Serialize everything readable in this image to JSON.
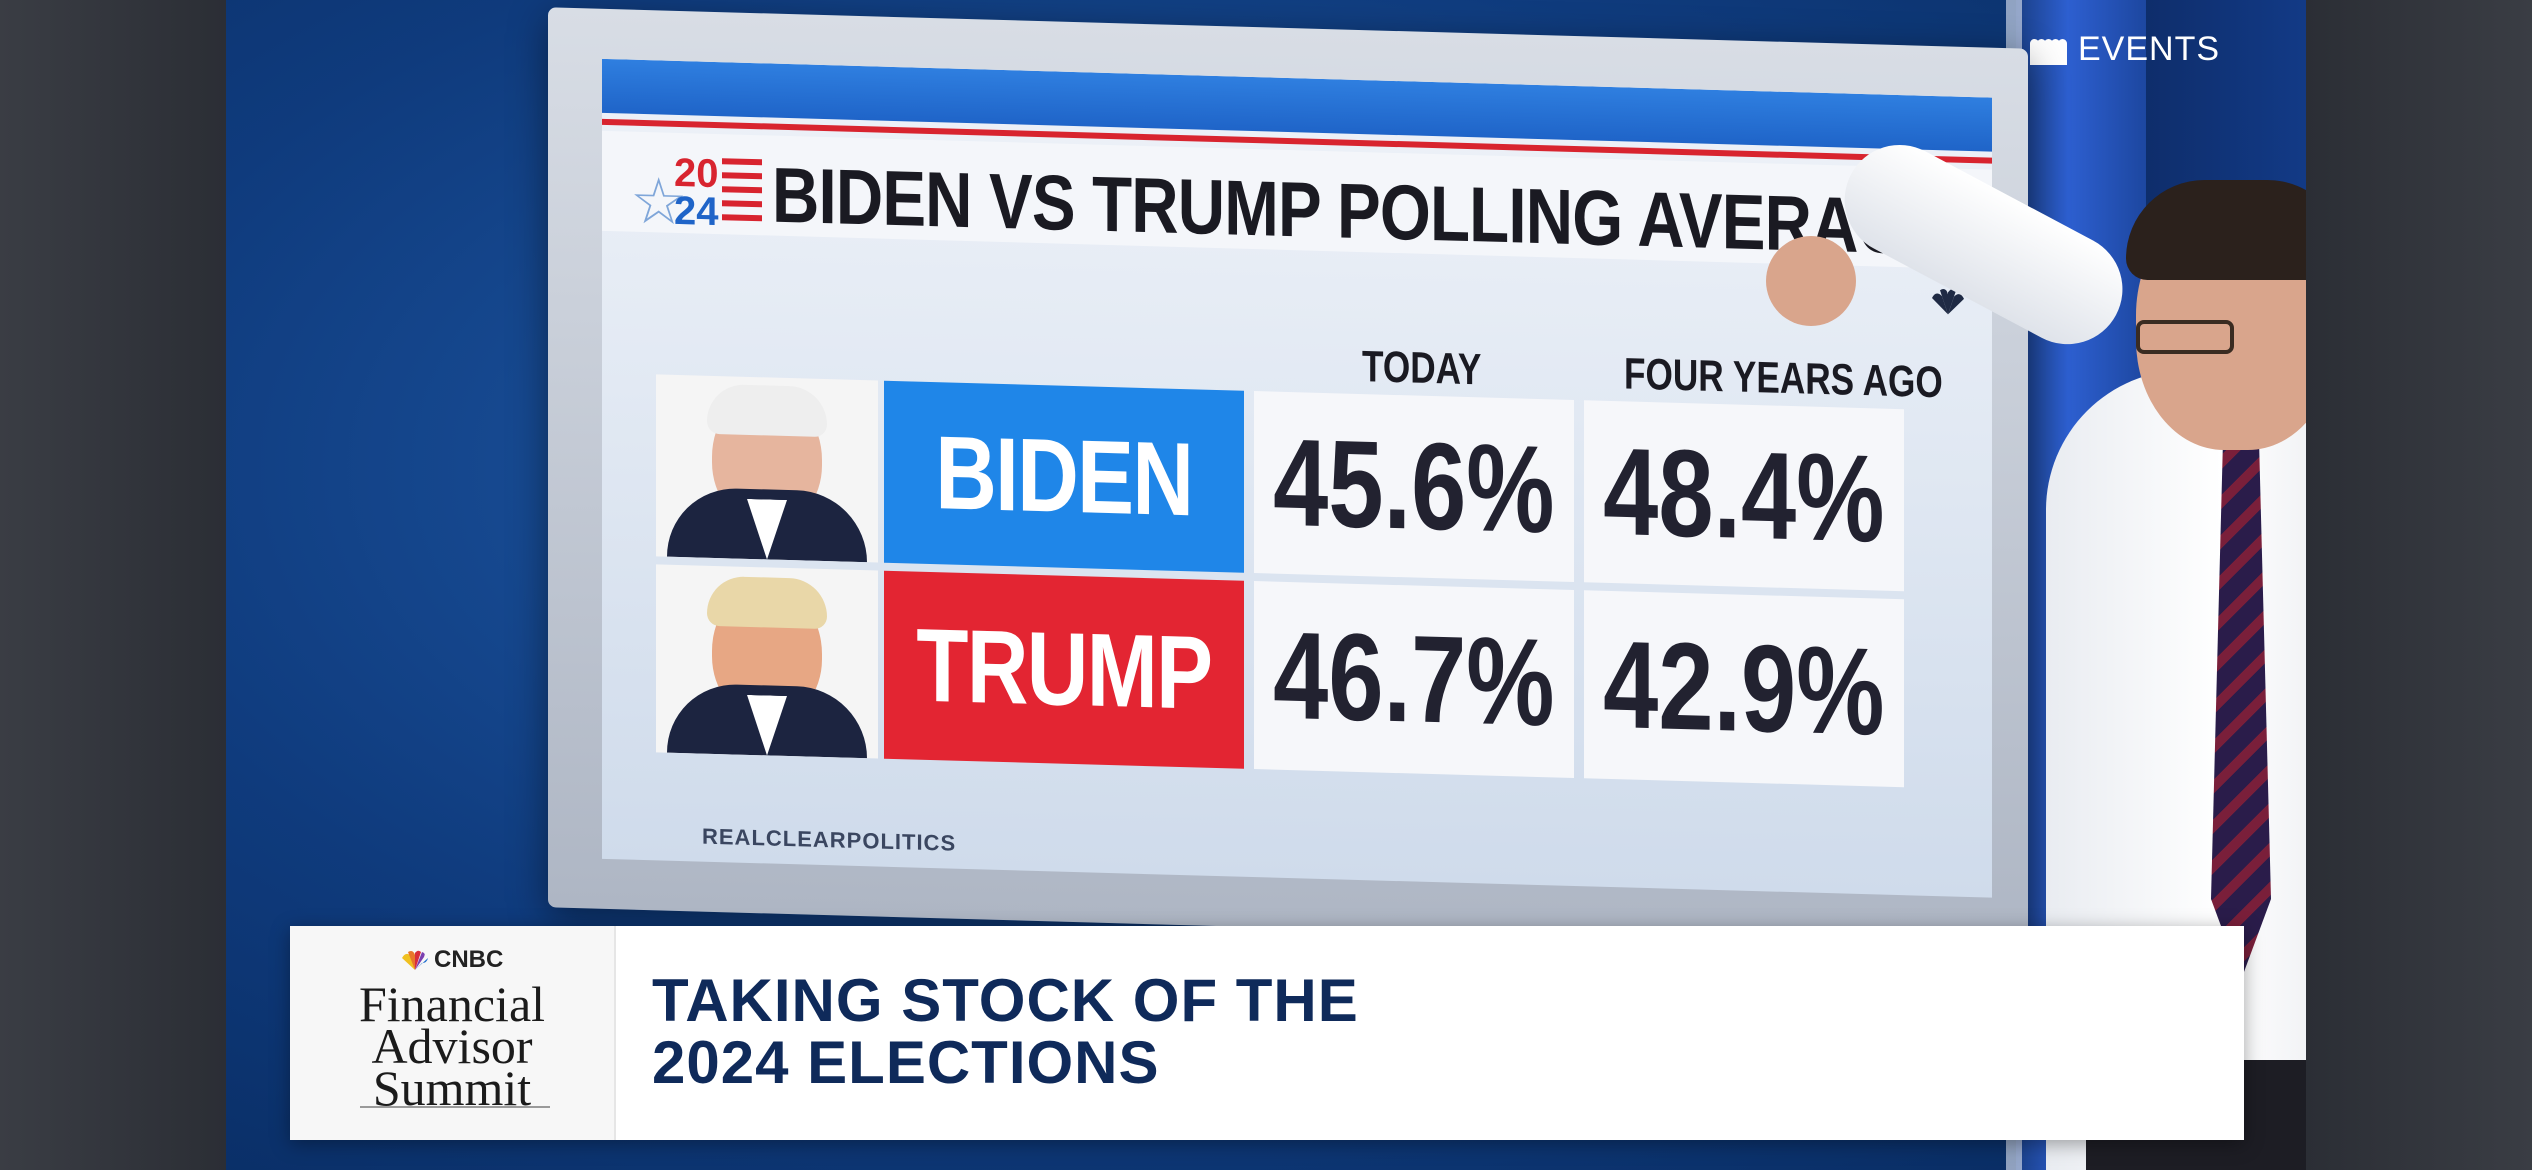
{
  "overlay": {
    "events_label": "EVENTS"
  },
  "board": {
    "logo": {
      "top": "20",
      "bottom": "24"
    },
    "title": "BIDEN VS TRUMP POLLING AVERAGE",
    "columns": [
      "TODAY",
      "FOUR YEARS AGO"
    ],
    "rows": [
      {
        "name": "BIDEN",
        "today": "45.6%",
        "four_years_ago": "48.4%",
        "color": "#1f86e8"
      },
      {
        "name": "TRUMP",
        "today": "46.7%",
        "four_years_ago": "42.9%",
        "color": "#e32532"
      }
    ],
    "source": "REALCLEARPOLITICS"
  },
  "lower_third": {
    "brand_network": "CNBC",
    "brand_lines": [
      "Financial",
      "Advisor",
      "Summit"
    ],
    "headline_lines": [
      "TAKING STOCK OF THE",
      "2024 ELECTIONS"
    ]
  },
  "colors": {
    "peacock": [
      "#f0c020",
      "#e8762a",
      "#d92c3c",
      "#7a3fb0",
      "#1f6fd0",
      "#2aa850"
    ]
  }
}
